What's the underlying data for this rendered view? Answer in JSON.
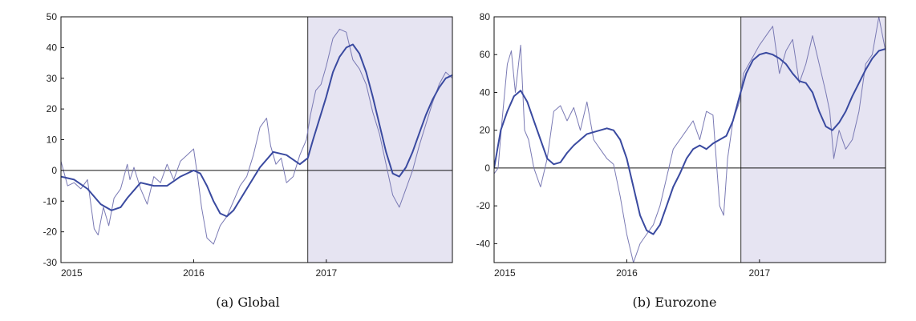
{
  "chart_data": [
    {
      "type": "line",
      "caption": "(a) Global",
      "xlim": [
        2015.0,
        2017.95
      ],
      "ylim": [
        -30,
        50
      ],
      "x_ticks": [
        2015,
        2016,
        2017
      ],
      "x_tick_labels": [
        "2015",
        "2016",
        "2017"
      ],
      "y_ticks": [
        -30,
        -20,
        -10,
        0,
        10,
        20,
        30,
        40,
        50
      ],
      "y_tick_labels": [
        "-30",
        "-20",
        "-10",
        "0",
        "10",
        "20",
        "30",
        "40",
        "50"
      ],
      "shaded_region": [
        2016.86,
        2017.95
      ],
      "zero_line": true,
      "grid": false,
      "colors": {
        "raw": "#7a7ab4",
        "smooth": "#3a4aa0",
        "shade": "#e6e4f2"
      },
      "series": [
        {
          "role": "raw",
          "x": [
            2015.0,
            2015.05,
            2015.1,
            2015.15,
            2015.2,
            2015.25,
            2015.28,
            2015.32,
            2015.36,
            2015.4,
            2015.45,
            2015.5,
            2015.52,
            2015.55,
            2015.6,
            2015.65,
            2015.7,
            2015.75,
            2015.8,
            2015.85,
            2015.9,
            2015.95,
            2016.0,
            2016.03,
            2016.06,
            2016.1,
            2016.15,
            2016.2,
            2016.25,
            2016.3,
            2016.35,
            2016.4,
            2016.45,
            2016.5,
            2016.55,
            2016.58,
            2016.62,
            2016.66,
            2016.7,
            2016.75,
            2016.8,
            2016.85,
            2016.88,
            2016.92,
            2016.96,
            2017.0,
            2017.05,
            2017.1,
            2017.15,
            2017.2,
            2017.25,
            2017.3,
            2017.35,
            2017.4,
            2017.45,
            2017.5,
            2017.55,
            2017.6,
            2017.65,
            2017.7,
            2017.75,
            2017.8,
            2017.85,
            2017.9,
            2017.95
          ],
          "y": [
            3,
            -5,
            -4,
            -6,
            -3,
            -19,
            -21,
            -12,
            -18,
            -9,
            -6,
            2,
            -3,
            1,
            -6,
            -11,
            -2,
            -4,
            2,
            -3,
            3,
            5,
            7,
            -2,
            -12,
            -22,
            -24,
            -18,
            -15,
            -10,
            -5,
            -2,
            5,
            14,
            17,
            8,
            2,
            4,
            -4,
            -2,
            5,
            10,
            18,
            26,
            28,
            34,
            43,
            46,
            45,
            36,
            33,
            28,
            19,
            12,
            2,
            -8,
            -12,
            -6,
            0,
            8,
            15,
            22,
            28,
            32,
            30
          ]
        },
        {
          "role": "smooth",
          "x": [
            2015.0,
            2015.1,
            2015.2,
            2015.3,
            2015.38,
            2015.45,
            2015.5,
            2015.6,
            2015.7,
            2015.8,
            2015.9,
            2016.0,
            2016.05,
            2016.1,
            2016.15,
            2016.2,
            2016.25,
            2016.3,
            2016.4,
            2016.5,
            2016.6,
            2016.7,
            2016.8,
            2016.86,
            2016.9,
            2016.95,
            2017.0,
            2017.05,
            2017.1,
            2017.15,
            2017.2,
            2017.25,
            2017.3,
            2017.35,
            2017.4,
            2017.45,
            2017.5,
            2017.55,
            2017.6,
            2017.65,
            2017.7,
            2017.75,
            2017.8,
            2017.85,
            2017.9,
            2017.95
          ],
          "y": [
            -2,
            -3,
            -6,
            -11,
            -13,
            -12,
            -9,
            -4,
            -5,
            -5,
            -2,
            0,
            -1,
            -5,
            -10,
            -14,
            -15,
            -13,
            -6,
            1,
            6,
            5,
            2,
            4,
            10,
            17,
            24,
            32,
            37,
            40,
            41,
            38,
            32,
            24,
            15,
            6,
            -1,
            -2,
            1,
            6,
            12,
            18,
            23,
            27,
            30,
            31
          ]
        }
      ]
    },
    {
      "type": "line",
      "caption": "(b) Eurozone",
      "xlim": [
        2015.0,
        2017.95
      ],
      "ylim": [
        -50,
        80
      ],
      "x_ticks": [
        2015,
        2016,
        2017
      ],
      "x_tick_labels": [
        "2015",
        "2016",
        "2017"
      ],
      "y_ticks": [
        -40,
        -20,
        0,
        20,
        40,
        60,
        80
      ],
      "y_tick_labels": [
        "-40",
        "-20",
        "0",
        "20",
        "40",
        "60",
        "80"
      ],
      "shaded_region": [
        2016.86,
        2017.95
      ],
      "zero_line": true,
      "grid": false,
      "colors": {
        "raw": "#7a7ab4",
        "smooth": "#3a4aa0",
        "shade": "#e6e4f2"
      },
      "series": [
        {
          "role": "raw",
          "x": [
            2015.0,
            2015.03,
            2015.06,
            2015.1,
            2015.13,
            2015.16,
            2015.2,
            2015.23,
            2015.26,
            2015.3,
            2015.35,
            2015.4,
            2015.45,
            2015.5,
            2015.55,
            2015.6,
            2015.65,
            2015.7,
            2015.75,
            2015.8,
            2015.85,
            2015.9,
            2015.95,
            2016.0,
            2016.05,
            2016.1,
            2016.15,
            2016.2,
            2016.25,
            2016.3,
            2016.35,
            2016.4,
            2016.45,
            2016.5,
            2016.55,
            2016.6,
            2016.65,
            2016.7,
            2016.73,
            2016.76,
            2016.8,
            2016.85,
            2016.88,
            2016.92,
            2016.96,
            2017.0,
            2017.05,
            2017.1,
            2017.15,
            2017.2,
            2017.25,
            2017.3,
            2017.35,
            2017.4,
            2017.45,
            2017.5,
            2017.53,
            2017.56,
            2017.6,
            2017.65,
            2017.7,
            2017.75,
            2017.8,
            2017.85,
            2017.9,
            2017.95
          ],
          "y": [
            -3,
            0,
            25,
            55,
            62,
            40,
            65,
            20,
            15,
            0,
            -10,
            5,
            30,
            33,
            25,
            32,
            20,
            35,
            15,
            10,
            5,
            2,
            -15,
            -35,
            -50,
            -40,
            -35,
            -30,
            -20,
            -5,
            10,
            15,
            20,
            25,
            15,
            30,
            28,
            -20,
            -25,
            5,
            25,
            35,
            50,
            55,
            60,
            65,
            70,
            75,
            50,
            62,
            68,
            45,
            55,
            70,
            55,
            40,
            30,
            5,
            20,
            10,
            15,
            30,
            55,
            60,
            80,
            62
          ]
        },
        {
          "role": "smooth",
          "x": [
            2015.0,
            2015.05,
            2015.1,
            2015.15,
            2015.2,
            2015.25,
            2015.3,
            2015.35,
            2015.4,
            2015.45,
            2015.5,
            2015.55,
            2015.6,
            2015.7,
            2015.8,
            2015.85,
            2015.9,
            2015.95,
            2016.0,
            2016.05,
            2016.1,
            2016.15,
            2016.2,
            2016.25,
            2016.3,
            2016.35,
            2016.4,
            2016.45,
            2016.5,
            2016.55,
            2016.6,
            2016.65,
            2016.7,
            2016.75,
            2016.8,
            2016.85,
            2016.9,
            2016.95,
            2017.0,
            2017.05,
            2017.1,
            2017.15,
            2017.2,
            2017.25,
            2017.3,
            2017.35,
            2017.4,
            2017.45,
            2017.5,
            2017.55,
            2017.6,
            2017.65,
            2017.7,
            2017.75,
            2017.8,
            2017.85,
            2017.9,
            2017.95
          ],
          "y": [
            0,
            20,
            30,
            38,
            41,
            35,
            25,
            15,
            5,
            2,
            3,
            8,
            12,
            18,
            20,
            21,
            20,
            15,
            5,
            -10,
            -25,
            -33,
            -35,
            -30,
            -20,
            -10,
            -3,
            5,
            10,
            12,
            10,
            13,
            15,
            17,
            25,
            38,
            50,
            57,
            60,
            61,
            60,
            58,
            55,
            50,
            46,
            45,
            40,
            30,
            22,
            20,
            24,
            30,
            38,
            45,
            52,
            58,
            62,
            63
          ]
        }
      ]
    }
  ]
}
